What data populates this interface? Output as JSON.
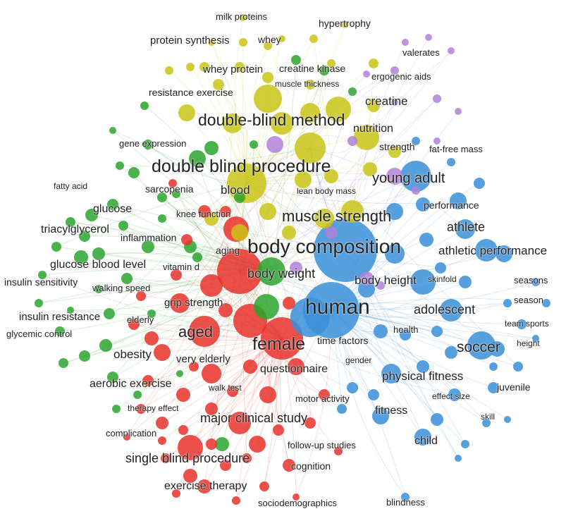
{
  "colors": {
    "red": "#e8312a",
    "green": "#2ba52e",
    "blue": "#3a8fd8",
    "yellow": "#c9c415",
    "purple": "#b281d8"
  },
  "terms": [
    {
      "text": "milk proteins",
      "cluster": "yellow"
    },
    {
      "text": "hypertrophy",
      "cluster": "yellow"
    },
    {
      "text": "protein synthesis",
      "cluster": "yellow"
    },
    {
      "text": "whey",
      "cluster": "yellow"
    },
    {
      "text": "valerates",
      "cluster": "purple"
    },
    {
      "text": "ergogenic aids",
      "cluster": "purple"
    },
    {
      "text": "whey protein",
      "cluster": "yellow"
    },
    {
      "text": "creatine kinase",
      "cluster": "green"
    },
    {
      "text": "muscle thickness",
      "cluster": "yellow"
    },
    {
      "text": "resistance exercise",
      "cluster": "yellow"
    },
    {
      "text": "creatine",
      "cluster": "yellow"
    },
    {
      "text": "double-blind method",
      "cluster": "yellow"
    },
    {
      "text": "nutrition",
      "cluster": "yellow"
    },
    {
      "text": "gene expression",
      "cluster": "green"
    },
    {
      "text": "strength",
      "cluster": "yellow"
    },
    {
      "text": "fat-free mass",
      "cluster": "blue"
    },
    {
      "text": "double blind procedure",
      "cluster": "yellow"
    },
    {
      "text": "young adult",
      "cluster": "blue"
    },
    {
      "text": "fatty acid",
      "cluster": "green"
    },
    {
      "text": "sarcopenia",
      "cluster": "red"
    },
    {
      "text": "blood",
      "cluster": "yellow"
    },
    {
      "text": "lean body mass",
      "cluster": "yellow"
    },
    {
      "text": "glucose",
      "cluster": "green"
    },
    {
      "text": "performance",
      "cluster": "blue"
    },
    {
      "text": "knee function",
      "cluster": "red"
    },
    {
      "text": "muscle strength",
      "cluster": "yellow"
    },
    {
      "text": "triacylglycerol",
      "cluster": "green"
    },
    {
      "text": "athlete",
      "cluster": "blue"
    },
    {
      "text": "inflammation",
      "cluster": "green"
    },
    {
      "text": "body composition",
      "cluster": "blue"
    },
    {
      "text": "aging",
      "cluster": "red"
    },
    {
      "text": "athletic performance",
      "cluster": "blue"
    },
    {
      "text": "glucose blood level",
      "cluster": "green"
    },
    {
      "text": "vitamin d",
      "cluster": "red"
    },
    {
      "text": "body weight",
      "cluster": "red"
    },
    {
      "text": "insulin sensitivity",
      "cluster": "green"
    },
    {
      "text": "body height",
      "cluster": "blue"
    },
    {
      "text": "skinfold",
      "cluster": "blue"
    },
    {
      "text": "seasons",
      "cluster": "blue"
    },
    {
      "text": "walking speed",
      "cluster": "red"
    },
    {
      "text": "season",
      "cluster": "blue"
    },
    {
      "text": "grip strength",
      "cluster": "red"
    },
    {
      "text": "human",
      "cluster": "blue"
    },
    {
      "text": "adolescent",
      "cluster": "blue"
    },
    {
      "text": "insulin resistance",
      "cluster": "green"
    },
    {
      "text": "elderly",
      "cluster": "red"
    },
    {
      "text": "team sports",
      "cluster": "blue"
    },
    {
      "text": "glycemic control",
      "cluster": "green"
    },
    {
      "text": "health",
      "cluster": "blue"
    },
    {
      "text": "aged",
      "cluster": "red"
    },
    {
      "text": "height",
      "cluster": "blue"
    },
    {
      "text": "female",
      "cluster": "red"
    },
    {
      "text": "time factors",
      "cluster": "blue"
    },
    {
      "text": "soccer",
      "cluster": "blue"
    },
    {
      "text": "obesity",
      "cluster": "green"
    },
    {
      "text": "very elderly",
      "cluster": "red"
    },
    {
      "text": "gender",
      "cluster": "blue"
    },
    {
      "text": "questionnaire",
      "cluster": "red"
    },
    {
      "text": "physical fitness",
      "cluster": "blue"
    },
    {
      "text": "aerobic exercise",
      "cluster": "green"
    },
    {
      "text": "walk test",
      "cluster": "red"
    },
    {
      "text": "juvenile",
      "cluster": "blue"
    },
    {
      "text": "effect size",
      "cluster": "blue"
    },
    {
      "text": "motor activity",
      "cluster": "red"
    },
    {
      "text": "therapy effect",
      "cluster": "red"
    },
    {
      "text": "fitness",
      "cluster": "blue"
    },
    {
      "text": "skill",
      "cluster": "blue"
    },
    {
      "text": "major clinical study",
      "cluster": "red"
    },
    {
      "text": "complication",
      "cluster": "red"
    },
    {
      "text": "child",
      "cluster": "blue"
    },
    {
      "text": "follow-up studies",
      "cluster": "red"
    },
    {
      "text": "single blind procedure",
      "cluster": "red"
    },
    {
      "text": "cognition",
      "cluster": "red"
    },
    {
      "text": "exercise therapy",
      "cluster": "red"
    },
    {
      "text": "sociodemographics",
      "cluster": "red"
    },
    {
      "text": "blindness",
      "cluster": "blue"
    }
  ]
}
